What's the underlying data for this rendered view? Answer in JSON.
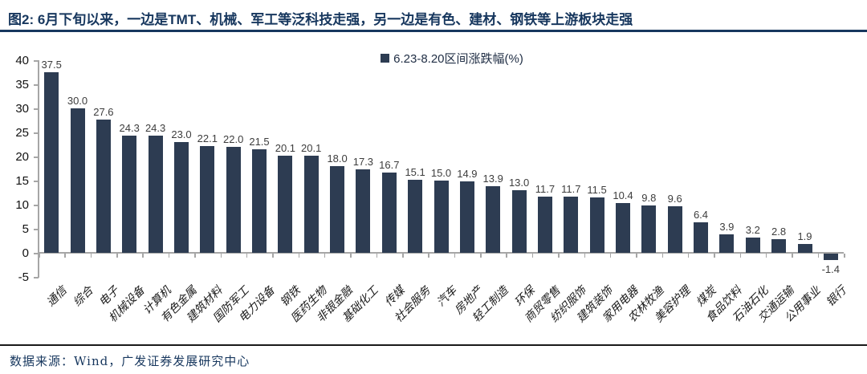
{
  "title": "图2:  6月下旬以来，一边是TMT、机械、军工等泛科技走强，另一边是有色、建材、钢铁等上游板块走强",
  "legend": "6.23-8.20区间涨跌幅(%)",
  "source": "数据来源：Wind，广发证券发展研究中心",
  "colors": {
    "bar": "#2d3c52",
    "title": "#17375e",
    "axis": "#a6a6a6",
    "value_label": "#3d3d3d",
    "footer": "#17375e"
  },
  "chart_data": {
    "type": "bar",
    "title": "6.23-8.20区间涨跌幅(%)",
    "categories": [
      "通信",
      "综合",
      "电子",
      "机械设备",
      "计算机",
      "有色金属",
      "建筑材料",
      "国防军工",
      "电力设备",
      "钢铁",
      "医药生物",
      "非银金融",
      "基础化工",
      "传媒",
      "社会服务",
      "汽车",
      "房地产",
      "轻工制造",
      "环保",
      "商贸零售",
      "纺织服饰",
      "建筑装饰",
      "家用电器",
      "农林牧渔",
      "美容护理",
      "煤炭",
      "食品饮料",
      "石油石化",
      "交通运输",
      "公用事业",
      "银行"
    ],
    "values": [
      37.5,
      30.0,
      27.6,
      24.3,
      24.3,
      23.0,
      22.1,
      22.0,
      21.5,
      20.1,
      20.1,
      18.0,
      17.3,
      16.7,
      15.1,
      15.0,
      14.9,
      13.9,
      13.0,
      11.7,
      11.7,
      11.5,
      10.4,
      9.8,
      9.6,
      6.4,
      3.9,
      3.2,
      2.8,
      1.9,
      -1.4
    ],
    "xlabel": "",
    "ylabel": "",
    "ylim": [
      -5,
      40
    ],
    "yticks": [
      40,
      35,
      30,
      25,
      20,
      15,
      10,
      5,
      0,
      -5
    ],
    "value_labels": true,
    "value_label_format": "0.1f",
    "grid": false,
    "legend_position": "top-center",
    "bar_color": "#2d3c52"
  }
}
